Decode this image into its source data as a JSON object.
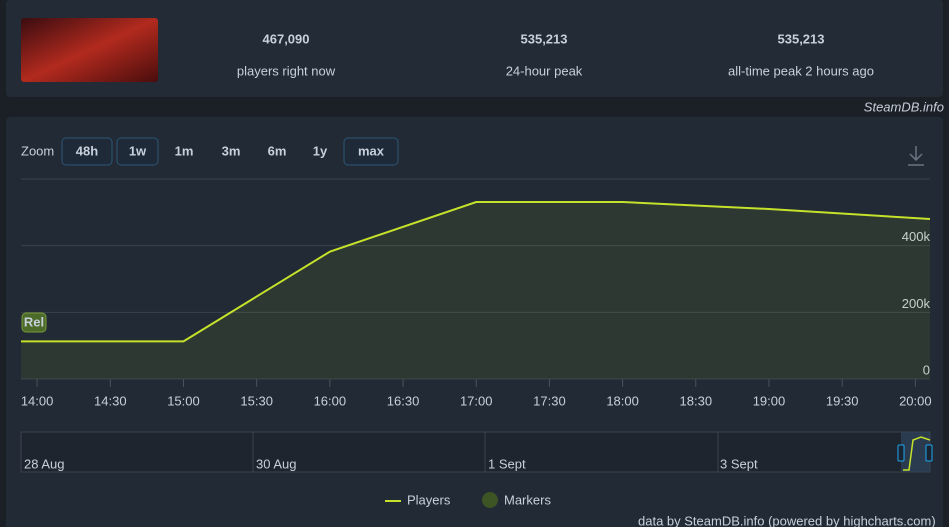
{
  "header": {
    "stats": [
      {
        "value": "467,090",
        "label": "players right now"
      },
      {
        "value": "535,213",
        "label": "24-hour peak"
      },
      {
        "value": "535,213",
        "label": "all-time peak 2 hours ago"
      }
    ],
    "source": "SteamDB.info"
  },
  "zoom": {
    "label": "Zoom",
    "buttons": [
      {
        "text": "48h",
        "active": true
      },
      {
        "text": "1w",
        "active": true
      },
      {
        "text": "1m",
        "active": false
      },
      {
        "text": "3m",
        "active": false
      },
      {
        "text": "6m",
        "active": false
      },
      {
        "text": "1y",
        "active": false
      },
      {
        "text": "max",
        "active": true
      }
    ]
  },
  "chart_data": {
    "type": "line",
    "x": [
      13.89,
      15,
      16,
      17,
      18,
      19,
      20.1
    ],
    "xlim": [
      13.89,
      20.1
    ],
    "xticks": [
      {
        "value": 14,
        "label": "14:00"
      },
      {
        "value": 14.5,
        "label": "14:30"
      },
      {
        "value": 15,
        "label": "15:00"
      },
      {
        "value": 15.5,
        "label": "15:30"
      },
      {
        "value": 16,
        "label": "16:00"
      },
      {
        "value": 16.5,
        "label": "16:30"
      },
      {
        "value": 17,
        "label": "17:00"
      },
      {
        "value": 17.5,
        "label": "17:30"
      },
      {
        "value": 18,
        "label": "18:00"
      },
      {
        "value": 18.5,
        "label": "18:30"
      },
      {
        "value": 19,
        "label": "19:00"
      },
      {
        "value": 19.5,
        "label": "19:30"
      },
      {
        "value": 20,
        "label": "20:00"
      }
    ],
    "ylim": [
      0,
      600000
    ],
    "yticks": [
      0,
      {
        "value": 200000,
        "label": "200k"
      },
      {
        "value": 400000,
        "label": "400k"
      }
    ],
    "grid": true,
    "series": [
      {
        "name": "Players",
        "color": "#c5e22b",
        "values": [
          113000,
          113000,
          382000,
          531000,
          531000,
          510000,
          480000
        ]
      }
    ],
    "marker_label": "Rel",
    "marker_legend": "Markers",
    "navigator": [
      "28 Aug",
      "30 Aug",
      "1 Sept",
      "3 Sept"
    ]
  },
  "footer": "data by SteamDB.info (powered by highcharts.com)"
}
